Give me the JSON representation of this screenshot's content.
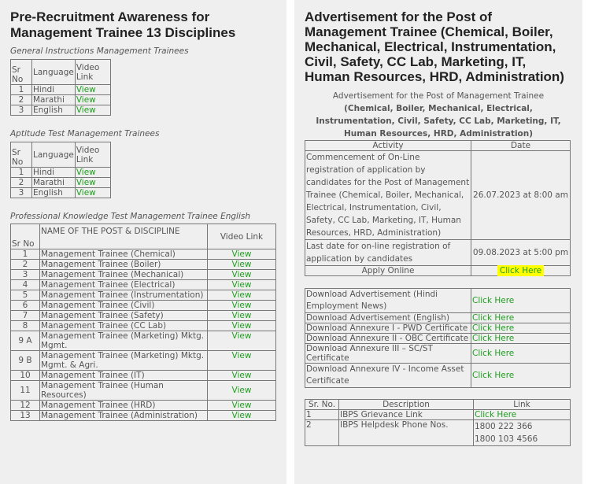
{
  "left": {
    "title": "Pre-Recruitment Awareness for Management Trainee 13 Disciplines",
    "general": {
      "caption": "General Instructions Management Trainees",
      "headers": [
        "Sr No",
        "Language",
        "Video Link"
      ],
      "rows": [
        {
          "sr": "1",
          "lang": "Hindi",
          "link": "View"
        },
        {
          "sr": "2",
          "lang": "Marathi",
          "link": "View"
        },
        {
          "sr": "3",
          "lang": "English",
          "link": "View"
        }
      ]
    },
    "aptitude": {
      "caption": "Aptitude Test Management Trainees",
      "headers": [
        "Sr No",
        "Language",
        "Video Link"
      ],
      "rows": [
        {
          "sr": "1",
          "lang": "Hindi",
          "link": "View"
        },
        {
          "sr": "2",
          "lang": "Marathi",
          "link": "View"
        },
        {
          "sr": "3",
          "lang": "English",
          "link": "View"
        }
      ]
    },
    "professional": {
      "caption": "Professional Knowledge Test Management Trainee English",
      "headers": [
        "Sr No",
        "NAME  OF THE POST & DISCIPLINE",
        "Video Link"
      ],
      "rows": [
        {
          "sr": "1",
          "name": "Management Trainee (Chemical)",
          "link": "View"
        },
        {
          "sr": "2",
          "name": "Management Trainee (Boiler)",
          "link": "View"
        },
        {
          "sr": "3",
          "name": "Management Trainee (Mechanical)",
          "link": "View"
        },
        {
          "sr": "4",
          "name": "Management Trainee (Electrical)",
          "link": "View"
        },
        {
          "sr": "5",
          "name": "Management Trainee (Instrumentation)",
          "link": "View"
        },
        {
          "sr": "6",
          "name": "Management Trainee (Civil)",
          "link": "View"
        },
        {
          "sr": "7",
          "name": "Management Trainee (Safety)",
          "link": "View"
        },
        {
          "sr": "8",
          "name": "Management Trainee (CC Lab)",
          "link": "View"
        },
        {
          "sr": "9 A",
          "name": "Management Trainee (Marketing) Mktg. Mgmt.",
          "link": "View"
        },
        {
          "sr": "9 B",
          "name": "Management Trainee (Marketing) Mktg. Mgmt. & Agri.",
          "link": "View"
        },
        {
          "sr": "10",
          "name": "Management Trainee (IT)",
          "link": "View"
        },
        {
          "sr": "11",
          "name": "Management Trainee (Human Resources)",
          "link": "View"
        },
        {
          "sr": "12",
          "name": "Management Trainee (HRD)",
          "link": "View"
        },
        {
          "sr": "13",
          "name": "Management Trainee (Administration)",
          "link": "View"
        }
      ]
    }
  },
  "right": {
    "title": "Advertisement for the Post of Management Trainee (Chemical, Boiler, Mechanical, Electrical, Instrumentation, Civil, Safety, CC Lab, Marketing, IT, Human Resources, HRD, Administration)",
    "schedule": {
      "caption_line1": "Advertisement for the Post of Management Trainee",
      "caption_line2": "(Chemical, Boiler, Mechanical, Electrical, Instrumentation, Civil, Safety, CC Lab, Marketing, IT, Human Resources, HRD, Administration)",
      "headers": [
        "Activity",
        "Date"
      ],
      "rows": [
        {
          "activity": "Commencement of On-Line registration of application by candidates for the Post of Management Trainee (Chemical, Boiler, Mechanical, Electrical, Instrumentation, Civil, Safety, CC Lab, Marketing, IT, Human Resources, HRD, Administration)",
          "date": "26.07.2023 at 8:00 am"
        },
        {
          "activity": "Last date for on-line registration of application by candidates",
          "date": "09.08.2023 at 5:00 pm"
        }
      ],
      "apply_label": "Apply Online",
      "apply_link": "Click Here"
    },
    "downloads": [
      {
        "label": "Download Advertisement (Hindi Employment News)",
        "link": "Click Here"
      },
      {
        "label": "Download Advertisement (English)",
        "link": "Click Here"
      },
      {
        "label": "Download Annexure I  - PWD Certificate",
        "link": "Click Here"
      },
      {
        "label": "Download Annexure II - OBC Certificate",
        "link": "Click Here"
      },
      {
        "label": "Download Annexure III – SC/ST Certificate",
        "link": "Click Here"
      },
      {
        "label": "Download Annexure IV - Income Asset Certificate",
        "link": "Click Here"
      }
    ],
    "grievance": {
      "headers": [
        "Sr. No.",
        "Description",
        "Link"
      ],
      "rows": [
        {
          "sr": "1",
          "desc": "IBPS Grievance Link",
          "link": "Click Here"
        },
        {
          "sr": "2",
          "desc": "IBPS Helpdesk Phone Nos.",
          "phone1": "1800 222 366",
          "phone2": "1800 103 4566"
        }
      ]
    }
  }
}
